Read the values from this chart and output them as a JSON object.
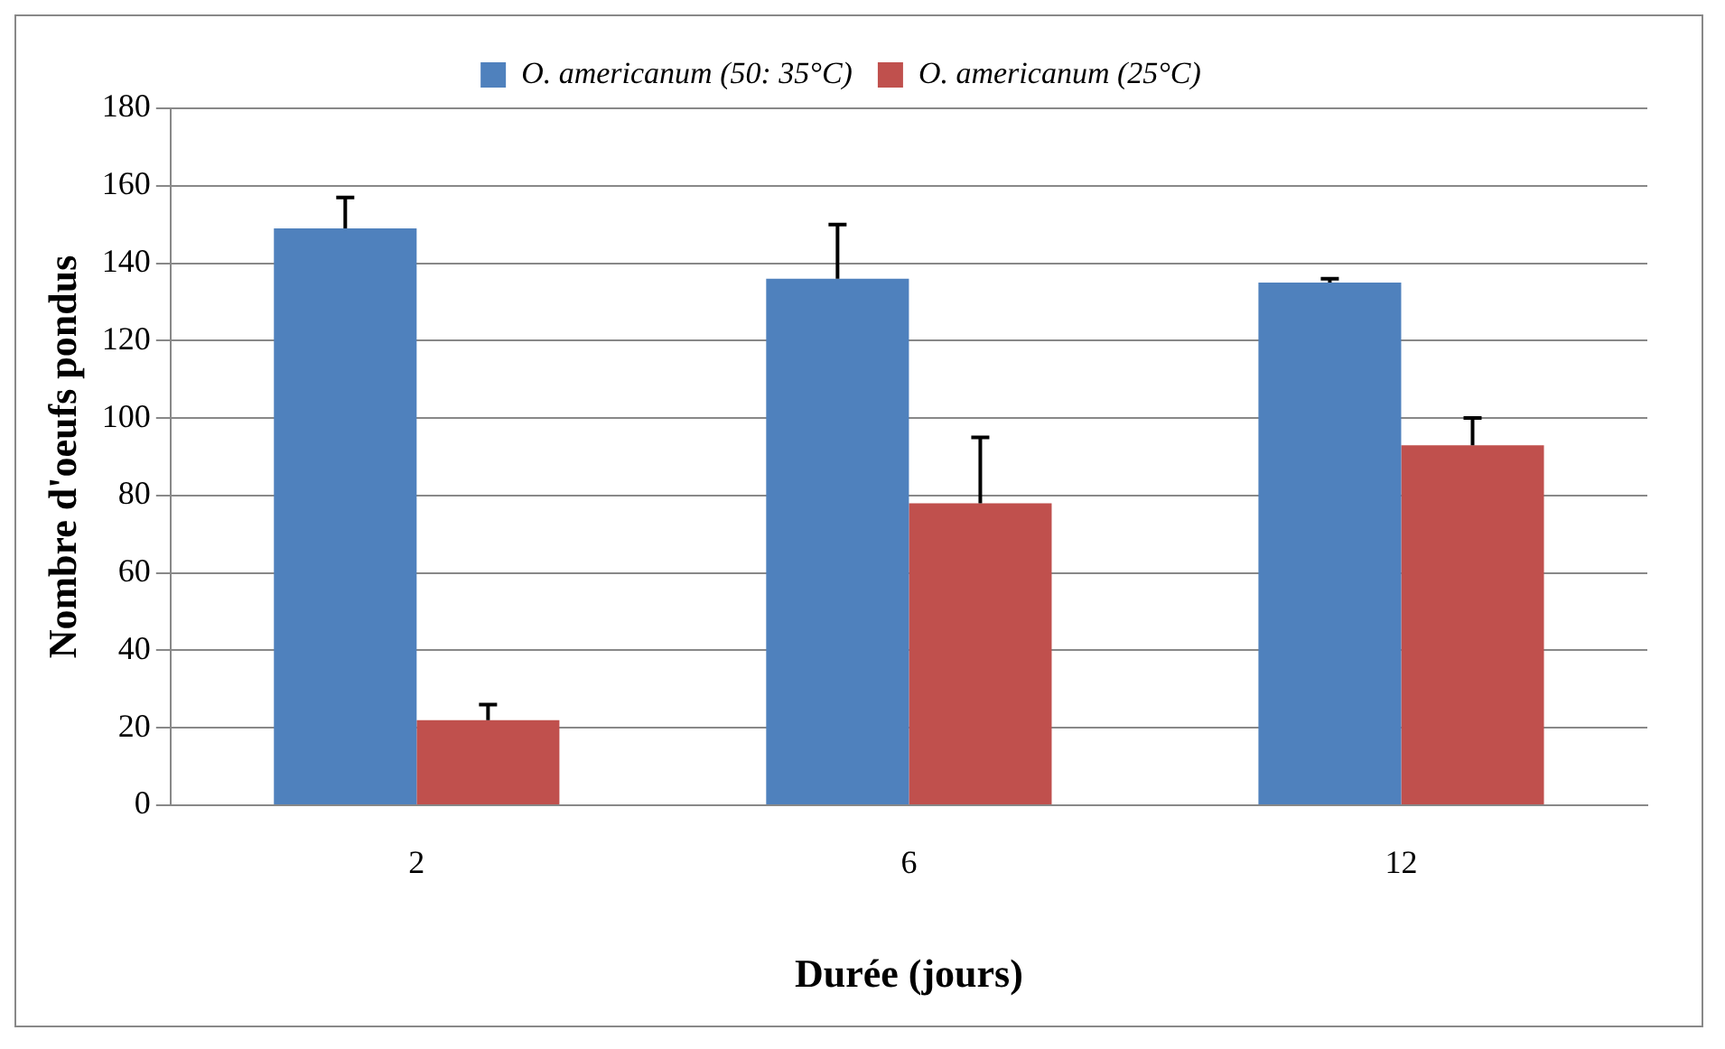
{
  "chart_data": {
    "type": "bar",
    "xlabel": "Durée (jours)",
    "ylabel": "Nombre d'oeufs pondus",
    "categories": [
      "2",
      "6",
      "12"
    ],
    "series": [
      {
        "name": "O. americanum (50: 35°C)",
        "color": "#4f81bd",
        "values": [
          149,
          136,
          135
        ],
        "errors": [
          [
            149,
            157
          ],
          [
            136,
            150
          ],
          [
            135,
            136
          ]
        ]
      },
      {
        "name": "O. americanum (25°C)",
        "color": "#c0504d",
        "values": [
          22,
          78,
          93
        ],
        "errors": [
          [
            22,
            26
          ],
          [
            78,
            95
          ],
          [
            93,
            100
          ]
        ]
      }
    ],
    "ylim": [
      0,
      180
    ],
    "yticks": [
      0,
      20,
      40,
      60,
      80,
      100,
      120,
      140,
      160,
      180
    ],
    "grid": "y",
    "legend": "top"
  }
}
